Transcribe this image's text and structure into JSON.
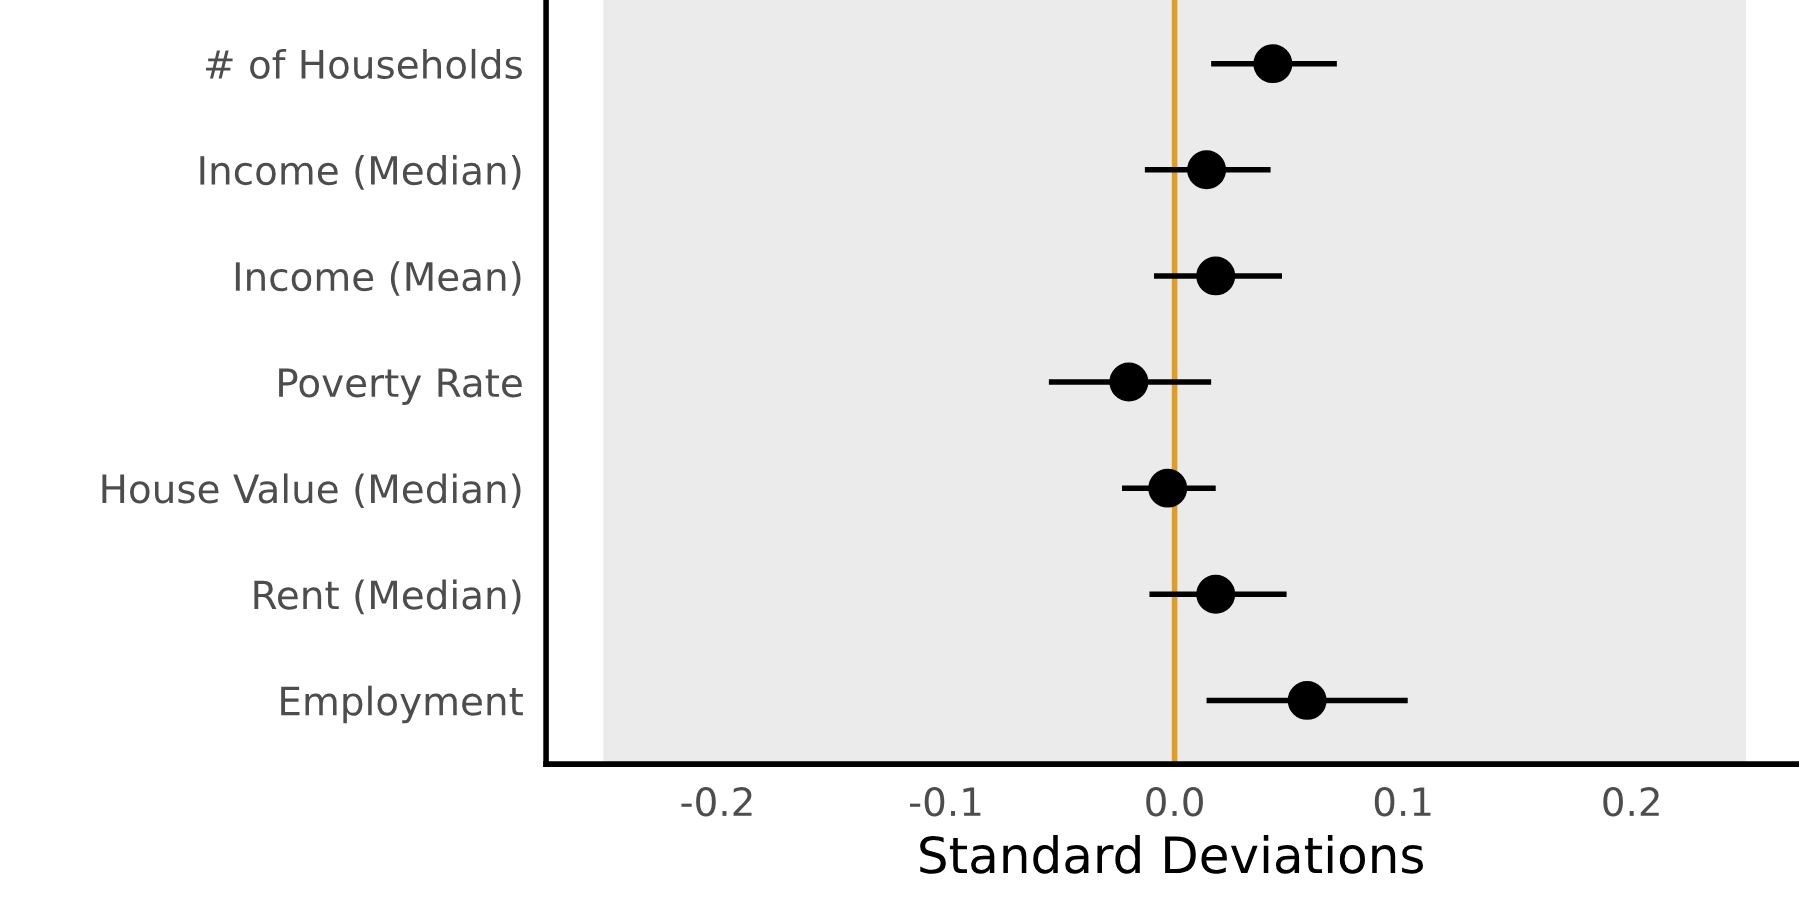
{
  "chart_data": {
    "type": "scatter",
    "orientation": "horizontal",
    "xlabel": "Standard Deviations",
    "categories": [
      "# of Households",
      "Income (Median)",
      "Income (Mean)",
      "Poverty Rate",
      "House Value (Median)",
      "Rent (Median)",
      "Employment"
    ],
    "values": [
      0.043,
      0.014,
      0.018,
      -0.02,
      -0.003,
      0.018,
      0.058
    ],
    "errors": [
      [
        0.016,
        0.071
      ],
      [
        -0.013,
        0.042
      ],
      [
        -0.009,
        0.047
      ],
      [
        -0.055,
        0.016
      ],
      [
        -0.023,
        0.018
      ],
      [
        -0.011,
        0.049
      ],
      [
        0.014,
        0.102
      ]
    ],
    "color": "#000000",
    "marker": "circle",
    "xlim": [
      -0.275,
      0.272
    ],
    "xticks": [
      {
        "value": -0.2,
        "label": "-0.2"
      },
      {
        "value": -0.1,
        "label": "-0.1"
      },
      {
        "value": 0.0,
        "label": "0.0"
      },
      {
        "value": 0.1,
        "label": "0.1"
      },
      {
        "value": 0.2,
        "label": "0.2"
      }
    ],
    "ref_lines": [
      {
        "axis": "x",
        "value": 0,
        "color": "#e09c24"
      }
    ],
    "bands": [
      {
        "axis": "x",
        "from": -0.25,
        "to": 0.25,
        "color": "#ebebeb"
      }
    ],
    "grid": false
  }
}
